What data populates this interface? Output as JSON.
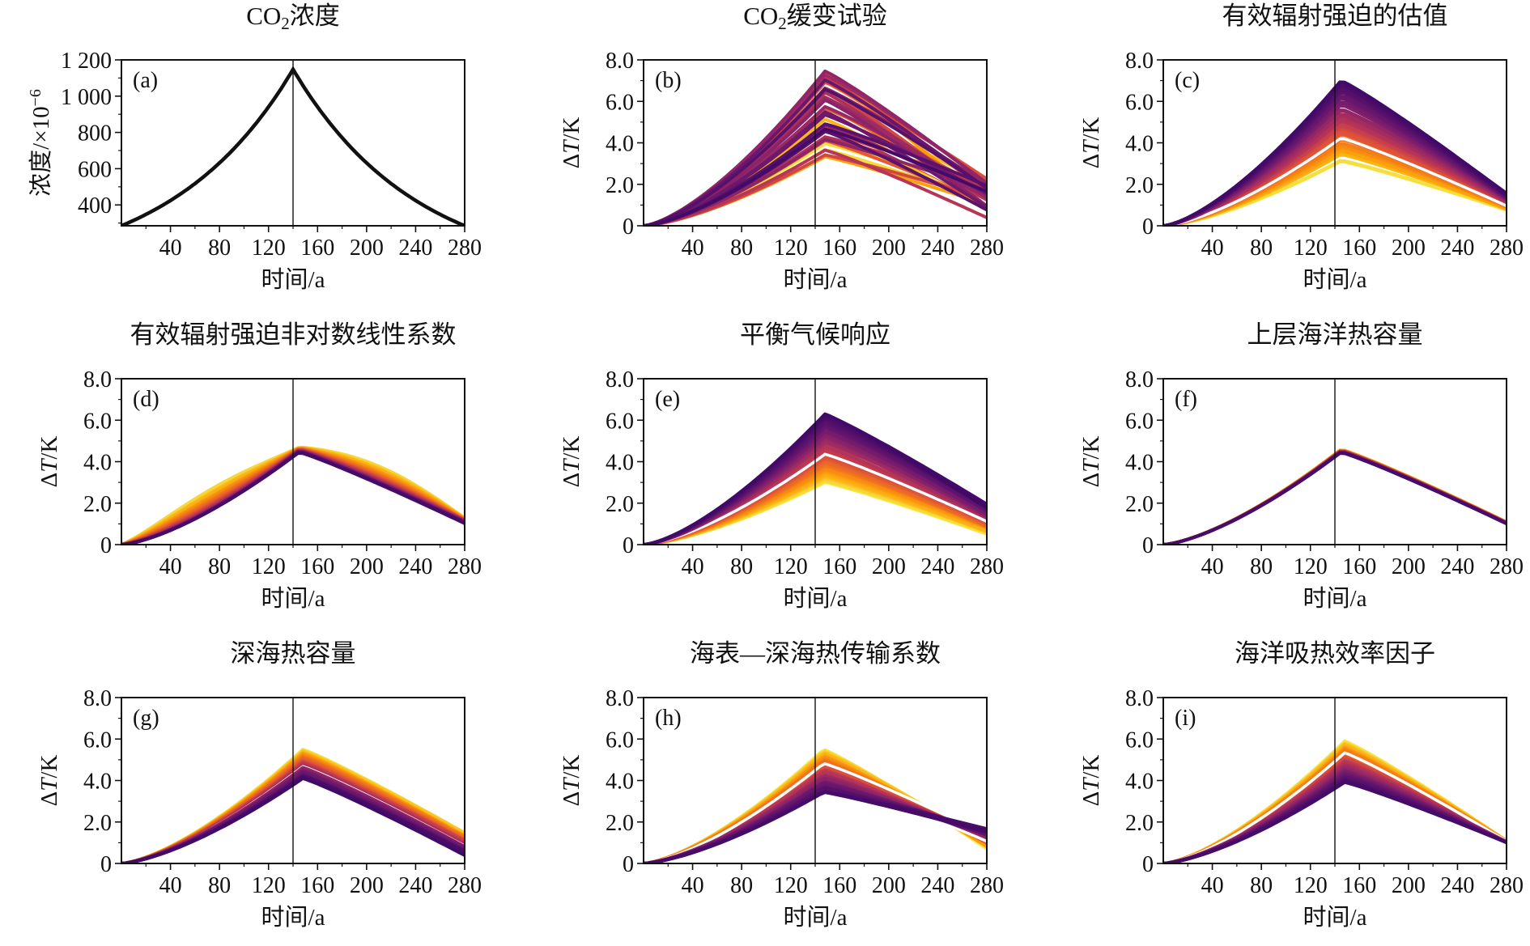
{
  "figure": {
    "panels": [
      {
        "id": "a",
        "label": "(a)",
        "title_main": "CO",
        "title_sub": "2",
        "title_rest": "浓度"
      },
      {
        "id": "b",
        "label": "(b)",
        "title_main": "CO",
        "title_sub": "2",
        "title_rest": "缓变试验"
      },
      {
        "id": "c",
        "label": "(c)",
        "title_main": "有效辐射强迫的估值"
      },
      {
        "id": "d",
        "label": "(d)",
        "title_main": "有效辐射强迫非对数线性系数"
      },
      {
        "id": "e",
        "label": "(e)",
        "title_main": "平衡气候响应"
      },
      {
        "id": "f",
        "label": "(f)",
        "title_main": "上层海洋热容量"
      },
      {
        "id": "g",
        "label": "(g)",
        "title_main": "深海热容量"
      },
      {
        "id": "h",
        "label": "(h)",
        "title_main": "海表—深海热传输系数"
      },
      {
        "id": "i",
        "label": "(i)",
        "title_main": "海洋吸热效率因子"
      }
    ]
  },
  "chart_data": [
    {
      "panel": "a",
      "type": "line",
      "title": "CO₂浓度",
      "xlabel": "时间/a",
      "ylabel": "浓度/×10⁻⁶",
      "xlim": [
        0,
        280
      ],
      "ylim": [
        285,
        1200
      ],
      "xticks": [
        40,
        80,
        120,
        160,
        200,
        240,
        280
      ],
      "yticks": [
        400,
        600,
        800,
        1000,
        1200
      ],
      "ytick_labels": [
        "400",
        "600",
        "800",
        "1 000",
        "1 200"
      ],
      "vline_x": 140,
      "series": [
        {
          "x": [
            0,
            20,
            40,
            60,
            80,
            100,
            120,
            140,
            160,
            180,
            200,
            220,
            240,
            260,
            280
          ],
          "values": [
            285,
            348,
            425,
            519,
            634,
            774,
            945,
            1155,
            945,
            774,
            634,
            519,
            425,
            348,
            285
          ]
        }
      ]
    },
    {
      "panel": "b",
      "type": "line",
      "title": "CO₂缓变试验",
      "xlabel": "时间/a",
      "ylabel": "ΔT/K",
      "xlim": [
        0,
        280
      ],
      "ylim": [
        0,
        8
      ],
      "xticks": [
        40,
        80,
        120,
        160,
        200,
        240,
        280
      ],
      "yticks": [
        0,
        2,
        4,
        6,
        8
      ],
      "ytick_labels": [
        "0",
        "2.0",
        "4.0",
        "6.0",
        "8.0"
      ],
      "vline_x": 140,
      "ensemble": {
        "count": 40,
        "peak_x": 148,
        "colormap": "inferno",
        "peak_range": [
          3.3,
          7.6
        ],
        "end_range": [
          0.3,
          2.4
        ],
        "end_mode": "random",
        "end_corr": 0.3,
        "white_lines": 1
      }
    },
    {
      "panel": "c",
      "type": "line",
      "title": "有效辐射强迫的估值",
      "xlabel": "时间/a",
      "ylabel": "ΔT/K",
      "xlim": [
        0,
        280
      ],
      "ylim": [
        0,
        8
      ],
      "xticks": [
        40,
        80,
        120,
        160,
        200,
        240,
        280
      ],
      "yticks": [
        0,
        2,
        4,
        6,
        8
      ],
      "ytick_labels": [
        "0",
        "2.0",
        "4.0",
        "6.0",
        "8.0"
      ],
      "vline_x": 140,
      "ensemble": {
        "count": 60,
        "peak_x": 145,
        "colormap": "inferno",
        "order": "high_dark",
        "peak_range": [
          3.1,
          7.0
        ],
        "end_range": [
          0.7,
          1.6
        ],
        "end_mode": "corr",
        "white_lines": 1
      }
    },
    {
      "panel": "d",
      "type": "line",
      "title": "有效辐射强迫非对数线性系数",
      "xlabel": "时间/a",
      "ylabel": "ΔT/K",
      "xlim": [
        0,
        280
      ],
      "ylim": [
        0,
        8
      ],
      "xticks": [
        40,
        80,
        120,
        160,
        200,
        240,
        280
      ],
      "yticks": [
        0,
        2,
        4,
        6,
        8
      ],
      "ytick_labels": [
        "0",
        "2.0",
        "4.0",
        "6.0",
        "8.0"
      ],
      "vline_x": 140,
      "ensemble": {
        "count": 40,
        "peak_x": 145,
        "colormap": "inferno",
        "order": "bulge",
        "peak_range": [
          4.45,
          4.7
        ],
        "end_range": [
          1.0,
          1.3
        ],
        "end_mode": "corr",
        "bulge_range": [
          0.0,
          1.1
        ],
        "white_lines": 0
      }
    },
    {
      "panel": "e",
      "type": "line",
      "title": "平衡气候响应",
      "xlabel": "时间/a",
      "ylabel": "ΔT/K",
      "xlim": [
        0,
        280
      ],
      "ylim": [
        0,
        8
      ],
      "xticks": [
        40,
        80,
        120,
        160,
        200,
        240,
        280
      ],
      "yticks": [
        0,
        2,
        4,
        6,
        8
      ],
      "ytick_labels": [
        "0",
        "2.0",
        "4.0",
        "6.0",
        "8.0"
      ],
      "vline_x": 140,
      "ensemble": {
        "count": 60,
        "peak_x": 148,
        "colormap": "inferno",
        "order": "high_dark",
        "peak_range": [
          3.0,
          6.3
        ],
        "end_range": [
          0.5,
          2.0
        ],
        "end_mode": "corr",
        "white_lines": 3
      }
    },
    {
      "panel": "f",
      "type": "line",
      "title": "上层海洋热容量",
      "xlabel": "时间/a",
      "ylabel": "ΔT/K",
      "xlim": [
        0,
        280
      ],
      "ylim": [
        0,
        8
      ],
      "xticks": [
        40,
        80,
        120,
        160,
        200,
        240,
        280
      ],
      "yticks": [
        0,
        2,
        4,
        6,
        8
      ],
      "ytick_labels": [
        "0",
        "2.0",
        "4.0",
        "6.0",
        "8.0"
      ],
      "vline_x": 140,
      "ensemble": {
        "count": 30,
        "peak_x": 145,
        "colormap": "inferno",
        "order": "low_dark",
        "peak_range": [
          4.45,
          4.6
        ],
        "end_range": [
          1.0,
          1.1
        ],
        "end_mode": "corr",
        "white_lines": 0
      }
    },
    {
      "panel": "g",
      "type": "line",
      "title": "深海热容量",
      "xlabel": "时间/a",
      "ylabel": "ΔT/K",
      "xlim": [
        0,
        280
      ],
      "ylim": [
        0,
        8
      ],
      "xticks": [
        40,
        80,
        120,
        160,
        200,
        240,
        280
      ],
      "yticks": [
        0,
        2,
        4,
        6,
        8
      ],
      "ytick_labels": [
        "0",
        "2.0",
        "4.0",
        "6.0",
        "8.0"
      ],
      "vline_x": 140,
      "ensemble": {
        "count": 50,
        "peak_x": 148,
        "colormap": "inferno",
        "order": "low_dark",
        "peak_range": [
          4.1,
          5.5
        ],
        "end_range": [
          0.35,
          1.55
        ],
        "end_mode": "corr",
        "white_lines": 1
      }
    },
    {
      "panel": "h",
      "type": "line",
      "title": "海表—深海热传输系数",
      "xlabel": "时间/a",
      "ylabel": "ΔT/K",
      "xlim": [
        0,
        280
      ],
      "ylim": [
        0,
        8
      ],
      "xticks": [
        40,
        80,
        120,
        160,
        200,
        240,
        280
      ],
      "yticks": [
        0,
        2,
        4,
        6,
        8
      ],
      "ytick_labels": [
        "0",
        "2.0",
        "4.0",
        "6.0",
        "8.0"
      ],
      "vline_x": 140,
      "ensemble": {
        "count": 50,
        "peak_x": 147,
        "colormap": "inferno",
        "order": "low_dark",
        "peak_range": [
          3.4,
          5.5
        ],
        "end_range": [
          0.7,
          1.7
        ],
        "end_mode": "anti",
        "white_lines": 2
      }
    },
    {
      "panel": "i",
      "type": "line",
      "title": "海洋吸热效率因子",
      "xlabel": "时间/a",
      "ylabel": "ΔT/K",
      "xlim": [
        0,
        280
      ],
      "ylim": [
        0,
        8
      ],
      "xticks": [
        40,
        80,
        120,
        160,
        200,
        240,
        280
      ],
      "yticks": [
        0,
        2,
        4,
        6,
        8
      ],
      "ytick_labels": [
        "0",
        "2.0",
        "4.0",
        "6.0",
        "8.0"
      ],
      "vline_x": 140,
      "ensemble": {
        "count": 45,
        "peak_x": 148,
        "colormap": "inferno",
        "order": "low_dark",
        "peak_range": [
          3.9,
          5.9
        ],
        "end_range": [
          1.0,
          1.1
        ],
        "end_mode": "corr",
        "white_lines": 1
      }
    }
  ]
}
